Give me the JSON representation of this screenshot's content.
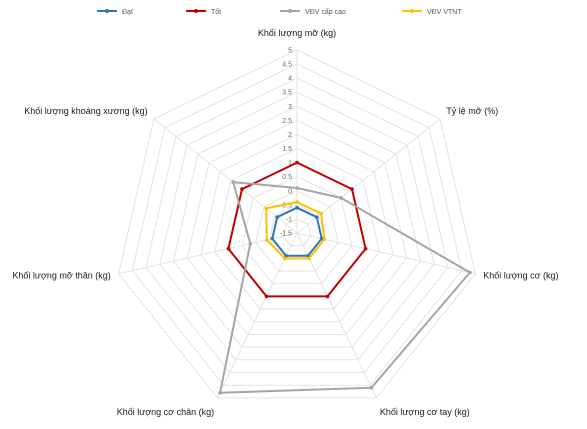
{
  "chart_data": {
    "type": "radar",
    "title": "",
    "axes": [
      "Khối lượng mỡ (kg)",
      "Tỷ lệ mỡ (%)",
      "Khối lượng cơ (kg)",
      "Khối lượng cơ tay (kg)",
      "Khối lượng cơ chân (kg)",
      "Khối lượng mỡ thân (kg)",
      "Khối lượng khoáng xương (kg)"
    ],
    "ticks": [
      "-1.5",
      "-1",
      "-0.5",
      "0",
      "0.5",
      "1",
      "1.5",
      "2",
      "2.5",
      "3",
      "3.5",
      "4",
      "4.5",
      "5"
    ],
    "rmin": -1.5,
    "rmax": 5,
    "tick_step": 0.5,
    "series": [
      {
        "name": "Đạt",
        "color": "#2E75B6",
        "values": [
          -0.6,
          -0.6,
          -0.6,
          -0.6,
          -0.6,
          -0.6,
          -0.6
        ]
      },
      {
        "name": "Tốt",
        "color": "#C00000",
        "values": [
          1,
          1,
          1,
          1,
          1,
          1,
          1
        ]
      },
      {
        "name": "VĐV cấp cao",
        "color": "#A5A5A5",
        "values": [
          0.1,
          0.5,
          4.8,
          4.6,
          4.8,
          0.2,
          1.4
        ]
      },
      {
        "name": "VĐV VTNT",
        "color": "#FFC000",
        "values": [
          -0.4,
          -0.4,
          -0.5,
          -0.5,
          -0.5,
          -0.4,
          -0.1
        ]
      }
    ],
    "legend_position": "top",
    "grid": true
  }
}
